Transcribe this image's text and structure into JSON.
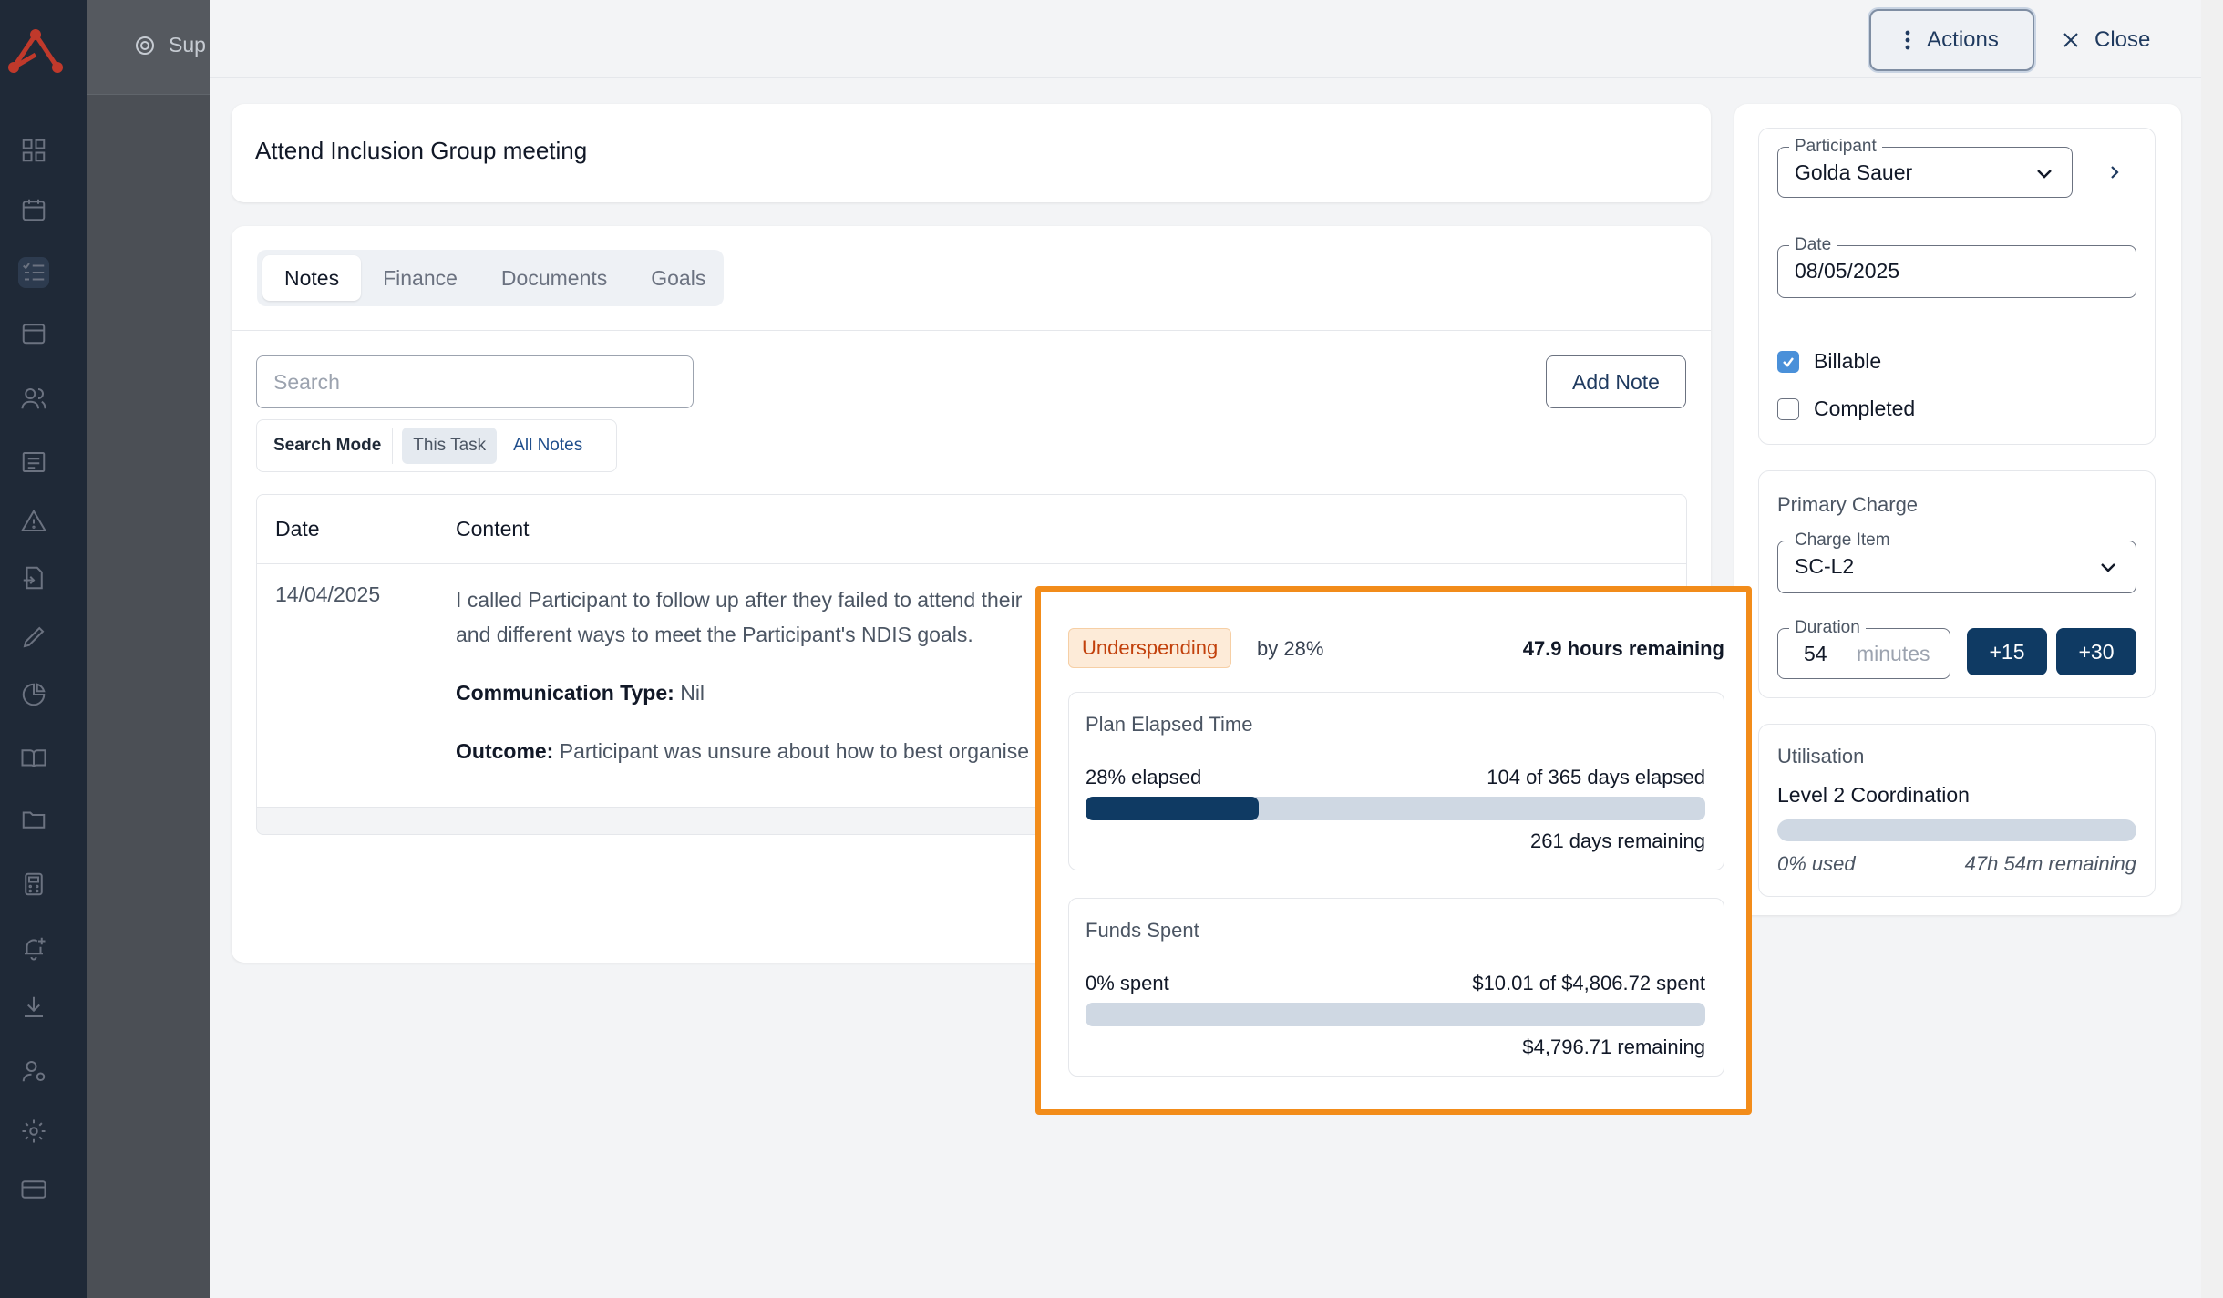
{
  "background_page": {
    "partial_title": "Sup"
  },
  "topbar": {
    "actions_label": "Actions",
    "close_label": "Close"
  },
  "task": {
    "title": "Attend Inclusion Group meeting"
  },
  "tabs": [
    {
      "label": "Notes",
      "active": true
    },
    {
      "label": "Finance",
      "active": false
    },
    {
      "label": "Documents",
      "active": false
    },
    {
      "label": "Goals",
      "active": false
    }
  ],
  "search": {
    "placeholder": "Search",
    "value": ""
  },
  "search_mode": {
    "label": "Search Mode",
    "options": [
      {
        "label": "This Task",
        "active": true
      },
      {
        "label": "All Notes",
        "active": false
      }
    ]
  },
  "add_note_label": "Add Note",
  "notes_table": {
    "headers": [
      "Date",
      "Content"
    ],
    "rows": [
      {
        "date": "14/04/2025",
        "line1": "I called Participant to follow up after they failed to attend their",
        "line2": "and different ways to meet the Participant's NDIS goals.",
        "comm_label": "Communication Type:",
        "comm_value": "Nil",
        "outcome_label": "Outcome:",
        "outcome_value": "Participant was unsure about how to best organise"
      }
    ]
  },
  "sidebar": {
    "participant": {
      "label": "Participant",
      "value": "Golda Sauer"
    },
    "date": {
      "label": "Date",
      "value": "08/05/2025"
    },
    "billable": {
      "label": "Billable",
      "checked": true
    },
    "completed": {
      "label": "Completed",
      "checked": false
    },
    "primary_charge": {
      "title": "Primary Charge",
      "charge_item": {
        "label": "Charge Item",
        "value": "SC-L2"
      },
      "duration": {
        "label": "Duration",
        "value": "54",
        "unit": "minutes"
      },
      "plus15": "+15",
      "plus30": "+30"
    },
    "utilisation": {
      "title": "Utilisation",
      "name": "Level 2 Coordination",
      "used_fraction": 0,
      "used_text": "0% used",
      "remaining_text": "47h 54m remaining"
    }
  },
  "popover": {
    "badge": "Underspending",
    "by_text": "by 28%",
    "hours_remaining": "47.9 hours remaining",
    "plan_elapsed": {
      "title": "Plan Elapsed Time",
      "left": "28% elapsed",
      "right": "104 of 365 days elapsed",
      "fraction": 0.28,
      "remaining": "261 days remaining"
    },
    "funds_spent": {
      "title": "Funds Spent",
      "left": "0% spent",
      "right": "$10.01 of $4,806.72 spent",
      "fraction": 0.002,
      "remaining": "$4,796.71 remaining"
    }
  },
  "colors": {
    "accent_dark": "#0f3a63",
    "highlight_border": "#f28c1a",
    "badge_text": "#c2410c",
    "checkbox_on": "#4a90d9"
  },
  "icons": {
    "nav": [
      "dashboard-icon",
      "calendar-check-icon",
      "tasks-list-icon",
      "calendar-icon",
      "users-icon",
      "report-icon",
      "warning-icon",
      "document-import-icon",
      "pen-icon",
      "pie-chart-icon",
      "book-icon",
      "folder-icon",
      "calculator-icon",
      "bell-plus-icon",
      "download-icon",
      "user-cog-icon",
      "settings-icon",
      "credit-card-icon"
    ]
  }
}
